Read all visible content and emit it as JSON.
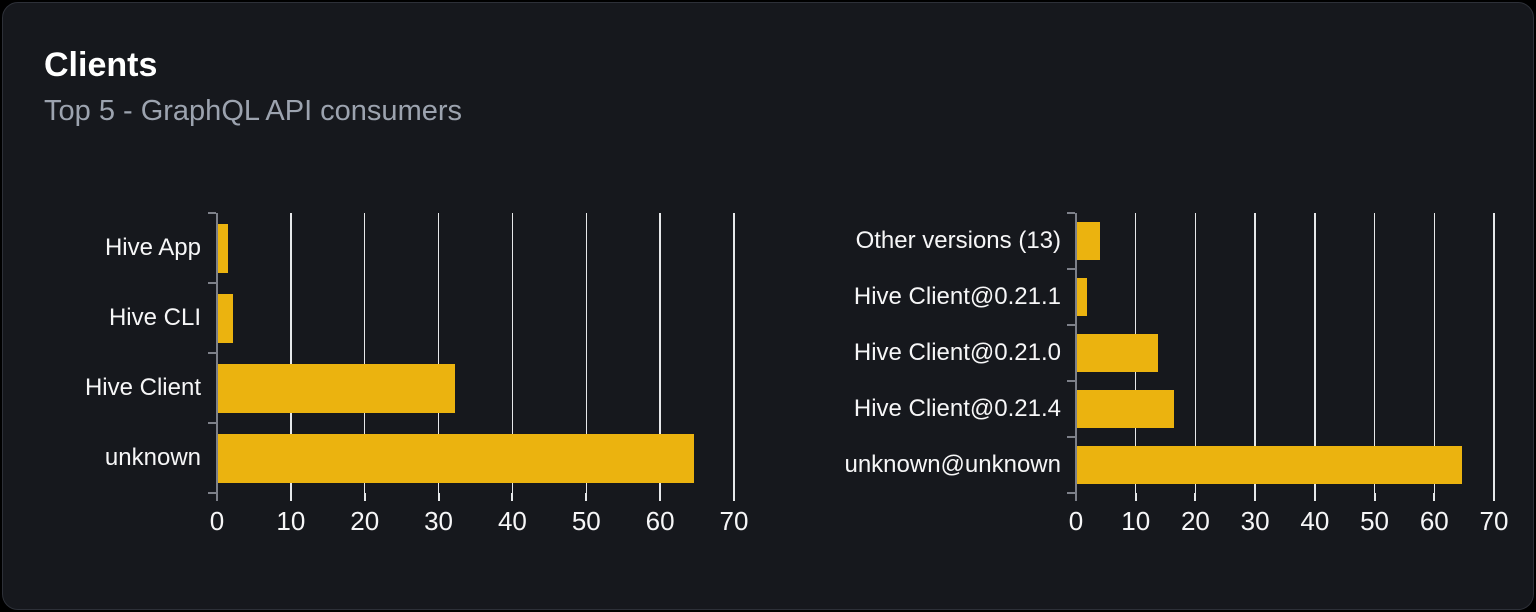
{
  "card": {
    "title": "Clients",
    "subtitle": "Top 5 - GraphQL API consumers"
  },
  "colors": {
    "bar": "#ebb30f",
    "grid": "#e6e8ea",
    "axis": "#7d8089",
    "text": "#f6f6f7",
    "title": "#ffffff",
    "subtitle": "#9ca3af",
    "card_bg": "#16181d",
    "card_border": "#2d3038",
    "page_bg": "#000000"
  },
  "chart_data": [
    {
      "type": "bar",
      "orientation": "horizontal",
      "categories": [
        "Hive App",
        "Hive CLI",
        "Hive Client",
        "unknown"
      ],
      "values": [
        1.4,
        2.1,
        32.1,
        64.5
      ],
      "xlim": [
        0,
        70
      ],
      "xticks": [
        0,
        10,
        20,
        30,
        40,
        50,
        60,
        70
      ],
      "grid": true,
      "legend": false
    },
    {
      "type": "bar",
      "orientation": "horizontal",
      "categories": [
        "Other versions (13)",
        "Hive Client@0.21.1",
        "Hive Client@0.21.0",
        "Hive Client@0.21.4",
        "unknown@unknown"
      ],
      "values": [
        3.9,
        1.7,
        13.7,
        16.3,
        64.5
      ],
      "xlim": [
        0,
        70
      ],
      "xticks": [
        0,
        10,
        20,
        30,
        40,
        50,
        60,
        70
      ],
      "grid": true,
      "legend": false
    }
  ]
}
